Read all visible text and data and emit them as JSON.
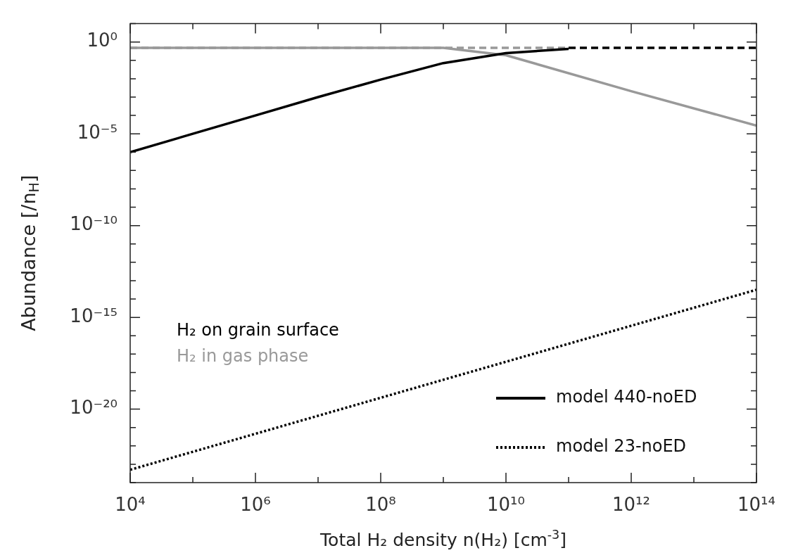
{
  "chart_data": {
    "type": "line",
    "xlabel": "Total H₂ density n(H₂) [cm$^{-3}$]",
    "ylabel": "Abundance [/n$_{H}$]",
    "log": "xy",
    "xlim": [
      10000.0,
      100000000000000.0
    ],
    "ylim": [
      1e-24,
      10
    ],
    "xticks": [
      {
        "value": 10000.0,
        "label": "10⁴"
      },
      {
        "value": 100000.0,
        "label": null
      },
      {
        "value": 1000000.0,
        "label": "10⁶"
      },
      {
        "value": 10000000.0,
        "label": null
      },
      {
        "value": 100000000.0,
        "label": "10⁸"
      },
      {
        "value": 1000000000.0,
        "label": null
      },
      {
        "value": 10000000000.0,
        "label": "10¹⁰"
      },
      {
        "value": 100000000000.0,
        "label": null
      },
      {
        "value": 1000000000000.0,
        "label": "10¹²"
      },
      {
        "value": 10000000000000.0,
        "label": null
      },
      {
        "value": 100000000000000.0,
        "label": "10¹⁴"
      }
    ],
    "yticks": [
      {
        "value": 1e-24,
        "label": null
      },
      {
        "value": 1e-23,
        "label": null
      },
      {
        "value": 1e-22,
        "label": null
      },
      {
        "value": 1e-21,
        "label": null
      },
      {
        "value": 1e-20,
        "label": "10⁻²⁰"
      },
      {
        "value": 1e-19,
        "label": null
      },
      {
        "value": 1e-18,
        "label": null
      },
      {
        "value": 1e-17,
        "label": null
      },
      {
        "value": 1e-16,
        "label": null
      },
      {
        "value": 1e-15,
        "label": "10⁻¹⁵"
      },
      {
        "value": 1e-14,
        "label": null
      },
      {
        "value": 1e-13,
        "label": null
      },
      {
        "value": 1e-12,
        "label": null
      },
      {
        "value": 1e-11,
        "label": null
      },
      {
        "value": 1e-10,
        "label": "10⁻¹⁰"
      },
      {
        "value": 1e-09,
        "label": null
      },
      {
        "value": 1e-08,
        "label": null
      },
      {
        "value": 1e-07,
        "label": null
      },
      {
        "value": 1e-06,
        "label": null
      },
      {
        "value": 1e-05,
        "label": "10⁻⁵"
      },
      {
        "value": 0.0001,
        "label": null
      },
      {
        "value": 0.001,
        "label": null
      },
      {
        "value": 0.01,
        "label": null
      },
      {
        "value": 0.1,
        "label": null
      },
      {
        "value": 1,
        "label": "10⁰"
      },
      {
        "value": 10,
        "label": null
      }
    ],
    "legend": "bottom right",
    "annotations": [
      "H₂ on grain surface",
      "H₂ in gas phase"
    ],
    "series": [
      {
        "name": "model 440-noED",
        "color": "#000000",
        "line_style": "solid",
        "x": [
          10000.0,
          100000.0,
          1000000.0,
          10000000.0,
          100000000.0,
          1000000000.0,
          10000000000.0,
          100000000000.0
        ],
        "values": [
          1e-06,
          1e-05,
          0.0001,
          0.001,
          0.009,
          0.071,
          0.25,
          0.42
        ]
      },
      {
        "color": "#999999",
        "line_style": "solid",
        "x": [
          10000.0,
          1000000000.0,
          10000000000.0,
          1000000000000.0,
          100000000000000.0
        ],
        "values": [
          0.48,
          0.48,
          0.19,
          0.0021,
          2.8e-05
        ]
      },
      {
        "name": "model 23-noED",
        "color": "#000000",
        "line_style": "dotted",
        "x": [
          10000.0,
          100000000000000.0
        ],
        "values": [
          5e-24,
          3.2e-14
        ]
      },
      {
        "color": "#999999",
        "line_style": "dashed",
        "x": [
          10000.0,
          100000000000.0
        ],
        "values": [
          0.48,
          0.48
        ]
      },
      {
        "color": "#000000",
        "line_style": "dashed",
        "x": [
          100000000000.0,
          100000000000000.0
        ],
        "values": [
          0.48,
          0.48
        ]
      }
    ]
  }
}
